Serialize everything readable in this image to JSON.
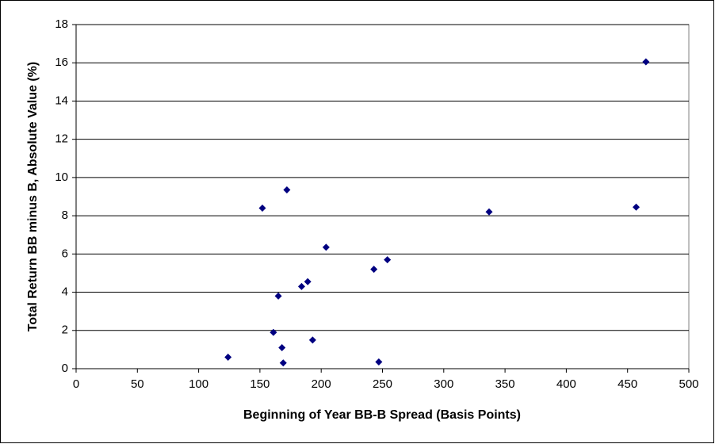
{
  "chart_data": {
    "type": "scatter",
    "x_label": "Beginning of Year BB-B Spread (Basis Points)",
    "y_label": "Total Return BB minus B, Absolute Value (%)",
    "series": [
      {
        "color": "#000080",
        "x": [
          124,
          152,
          161,
          165,
          168,
          169,
          172,
          184,
          189,
          193,
          204,
          243,
          247,
          254,
          337,
          457,
          465
        ],
        "values": [
          0.6,
          8.4,
          1.9,
          3.8,
          1.1,
          0.3,
          9.35,
          4.3,
          4.55,
          1.5,
          6.35,
          5.2,
          0.35,
          5.7,
          8.2,
          8.45,
          16.05
        ]
      }
    ],
    "xlim": [
      0,
      500
    ],
    "xticks": [
      0,
      50,
      100,
      150,
      200,
      250,
      300,
      350,
      400,
      450,
      500
    ],
    "ylim": [
      0,
      18
    ],
    "yticks": [
      0,
      2,
      4,
      6,
      8,
      10,
      12,
      14,
      16,
      18
    ],
    "grid": true
  }
}
